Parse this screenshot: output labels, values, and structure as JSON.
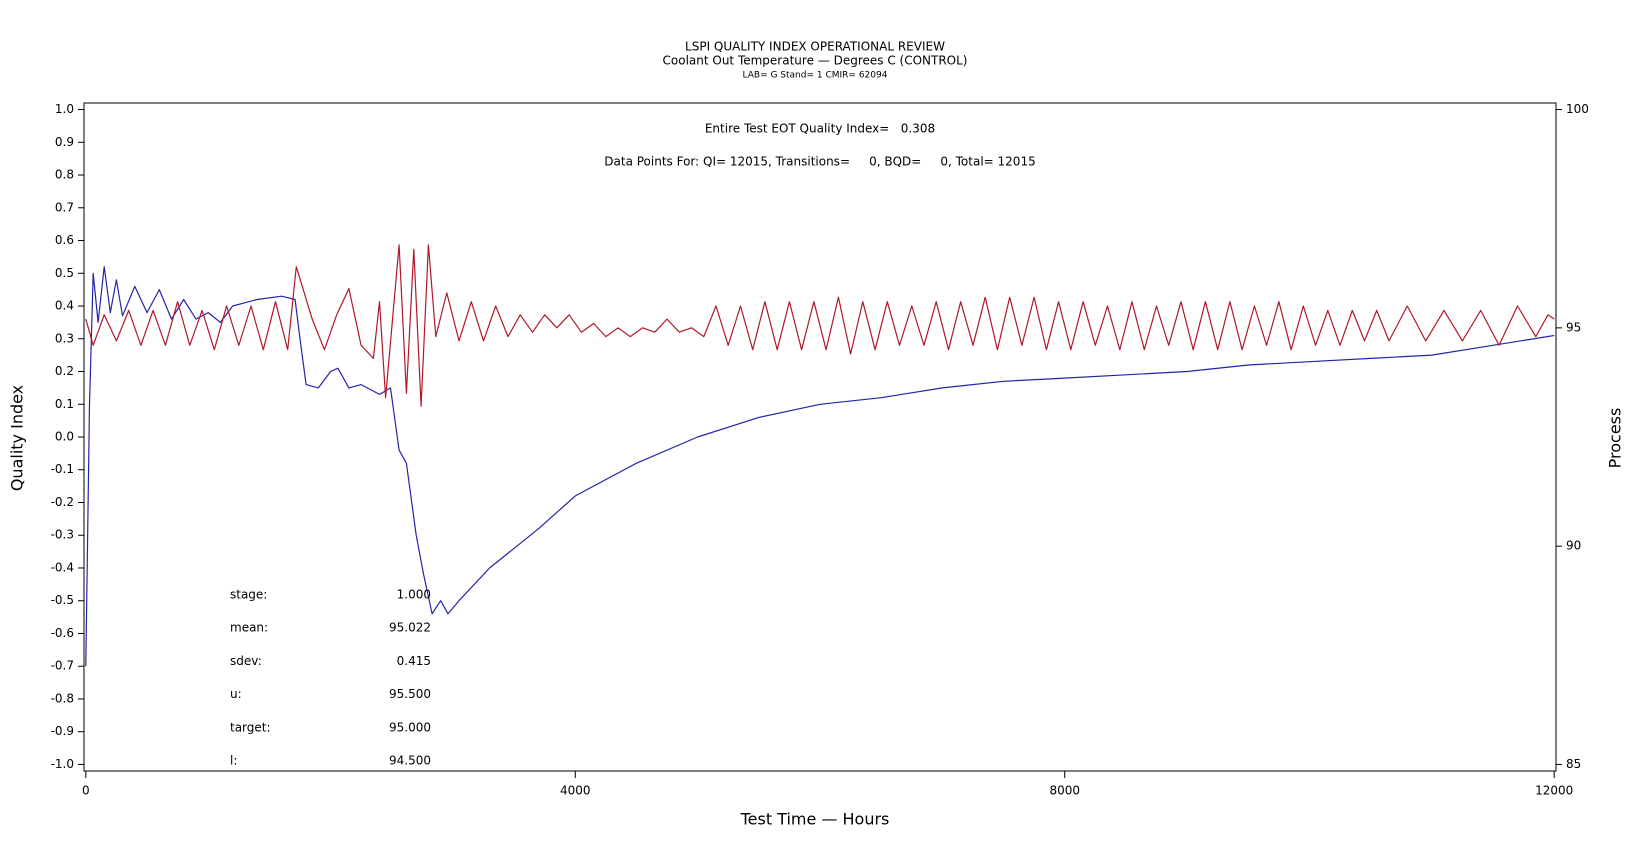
{
  "chart_data": {
    "type": "line",
    "title": "LSPI QUALITY INDEX OPERATIONAL REVIEW",
    "subtitle": "Coolant Out Temperature — Degrees C (CONTROL)",
    "subtitle2": "LAB= G Stand= 1 CMIR= 62094",
    "annotations": [
      "Entire Test EOT Quality Index=   0.308",
      "Data Points For: QI= 12015, Transitions=     0, BQD=     0, Total= 12015"
    ],
    "stats": [
      {
        "label": "stage:",
        "value": "1.000"
      },
      {
        "label": "mean:",
        "value": "95.022"
      },
      {
        "label": "sdev:",
        "value": "0.415"
      },
      {
        "label": "u:",
        "value": "95.500"
      },
      {
        "label": "target:",
        "value": "95.000"
      },
      {
        "label": "l:",
        "value": "94.500"
      }
    ],
    "xlabel": "Test Time — Hours",
    "ylabel": "Quality Index",
    "y2label": "Process",
    "xlim": [
      -15,
      12015
    ],
    "xticks": [
      0,
      4000,
      8000,
      12000
    ],
    "ylim": [
      -1.02,
      1.02
    ],
    "yticks": [
      {
        "value": -1.0,
        "label": "-1.0"
      },
      -0.9,
      -0.8,
      -0.7,
      -0.6,
      -0.5,
      -0.4,
      -0.3,
      -0.2,
      -0.1,
      {
        "value": 0,
        "label": "0.0"
      },
      0.1,
      0.2,
      0.3,
      0.4,
      0.5,
      0.6,
      0.7,
      0.8,
      0.9,
      {
        "value": 1.0,
        "label": "1.0"
      }
    ],
    "y2lim": [
      84.85,
      100.15
    ],
    "y2ticks": [
      85,
      90,
      95,
      100
    ],
    "series": [
      {
        "color": "#2424a8",
        "x": [
          0,
          30,
          60,
          100,
          150,
          200,
          250,
          300,
          400,
          500,
          600,
          700,
          800,
          900,
          1000,
          1100,
          1200,
          1400,
          1600,
          1710,
          1750,
          1800,
          1900,
          2000,
          2060,
          2150,
          2250,
          2400,
          2490,
          2560,
          2620,
          2700,
          2760,
          2830,
          2900,
          2960,
          3050,
          3300,
          3700,
          4000,
          4500,
          5000,
          5500,
          6000,
          6500,
          7000,
          7500,
          8000,
          8500,
          9000,
          9500,
          10000,
          10500,
          11000,
          11500,
          12000
        ],
        "values": [
          -0.7,
          0.1,
          0.5,
          0.35,
          0.52,
          0.38,
          0.48,
          0.37,
          0.46,
          0.38,
          0.45,
          0.36,
          0.42,
          0.36,
          0.38,
          0.35,
          0.4,
          0.42,
          0.43,
          0.42,
          0.3,
          0.16,
          0.15,
          0.2,
          0.21,
          0.15,
          0.16,
          0.13,
          0.15,
          -0.04,
          -0.08,
          -0.3,
          -0.42,
          -0.54,
          -0.5,
          -0.54,
          -0.5,
          -0.4,
          -0.28,
          -0.18,
          -0.08,
          0.0,
          0.06,
          0.1,
          0.12,
          0.15,
          0.17,
          0.18,
          0.19,
          0.2,
          0.22,
          0.23,
          0.24,
          0.25,
          0.28,
          0.31
        ]
      },
      {
        "color": "#b0182a",
        "axis": "y2",
        "x": [
          0,
          60,
          150,
          250,
          350,
          450,
          550,
          650,
          750,
          850,
          950,
          1050,
          1150,
          1250,
          1350,
          1450,
          1550,
          1650,
          1720,
          1850,
          1950,
          2050,
          2150,
          2250,
          2350,
          2400,
          2450,
          2560,
          2620,
          2680,
          2740,
          2800,
          2860,
          2950,
          3050,
          3150,
          3250,
          3350,
          3450,
          3550,
          3650,
          3750,
          3850,
          3950,
          4050,
          4150,
          4250,
          4350,
          4450,
          4550,
          4650,
          4750,
          4850,
          4950,
          5050,
          5150,
          5250,
          5350,
          5450,
          5550,
          5650,
          5750,
          5850,
          5950,
          6050,
          6150,
          6250,
          6350,
          6450,
          6550,
          6650,
          6750,
          6850,
          6950,
          7050,
          7150,
          7250,
          7350,
          7450,
          7550,
          7650,
          7750,
          7850,
          7950,
          8050,
          8150,
          8250,
          8350,
          8450,
          8550,
          8650,
          8750,
          8850,
          8950,
          9050,
          9150,
          9250,
          9350,
          9450,
          9550,
          9650,
          9750,
          9850,
          9950,
          10050,
          10150,
          10250,
          10350,
          10450,
          10550,
          10650,
          10800,
          10950,
          11100,
          11250,
          11400,
          11550,
          11700,
          11850,
          11950,
          12000
        ],
        "values": [
          95.2,
          94.6,
          95.3,
          94.7,
          95.4,
          94.6,
          95.4,
          94.6,
          95.6,
          94.6,
          95.4,
          94.5,
          95.5,
          94.6,
          95.5,
          94.5,
          95.6,
          94.5,
          96.4,
          95.2,
          94.5,
          95.3,
          95.9,
          94.6,
          94.3,
          95.6,
          93.4,
          96.9,
          93.5,
          96.8,
          93.2,
          96.9,
          94.8,
          95.8,
          94.7,
          95.6,
          94.7,
          95.5,
          94.8,
          95.3,
          94.9,
          95.3,
          95.0,
          95.3,
          94.9,
          95.1,
          94.8,
          95.0,
          94.8,
          95.0,
          94.9,
          95.2,
          94.9,
          95.0,
          94.8,
          95.5,
          94.6,
          95.5,
          94.5,
          95.6,
          94.5,
          95.6,
          94.5,
          95.6,
          94.5,
          95.7,
          94.4,
          95.6,
          94.5,
          95.6,
          94.6,
          95.5,
          94.6,
          95.6,
          94.5,
          95.6,
          94.6,
          95.7,
          94.5,
          95.7,
          94.6,
          95.7,
          94.5,
          95.6,
          94.5,
          95.6,
          94.6,
          95.5,
          94.5,
          95.6,
          94.5,
          95.5,
          94.6,
          95.6,
          94.5,
          95.6,
          94.5,
          95.6,
          94.5,
          95.5,
          94.6,
          95.6,
          94.5,
          95.5,
          94.6,
          95.4,
          94.6,
          95.4,
          94.7,
          95.4,
          94.7,
          95.5,
          94.7,
          95.4,
          94.7,
          95.4,
          94.6,
          95.5,
          94.8,
          95.3,
          95.2
        ]
      }
    ]
  }
}
